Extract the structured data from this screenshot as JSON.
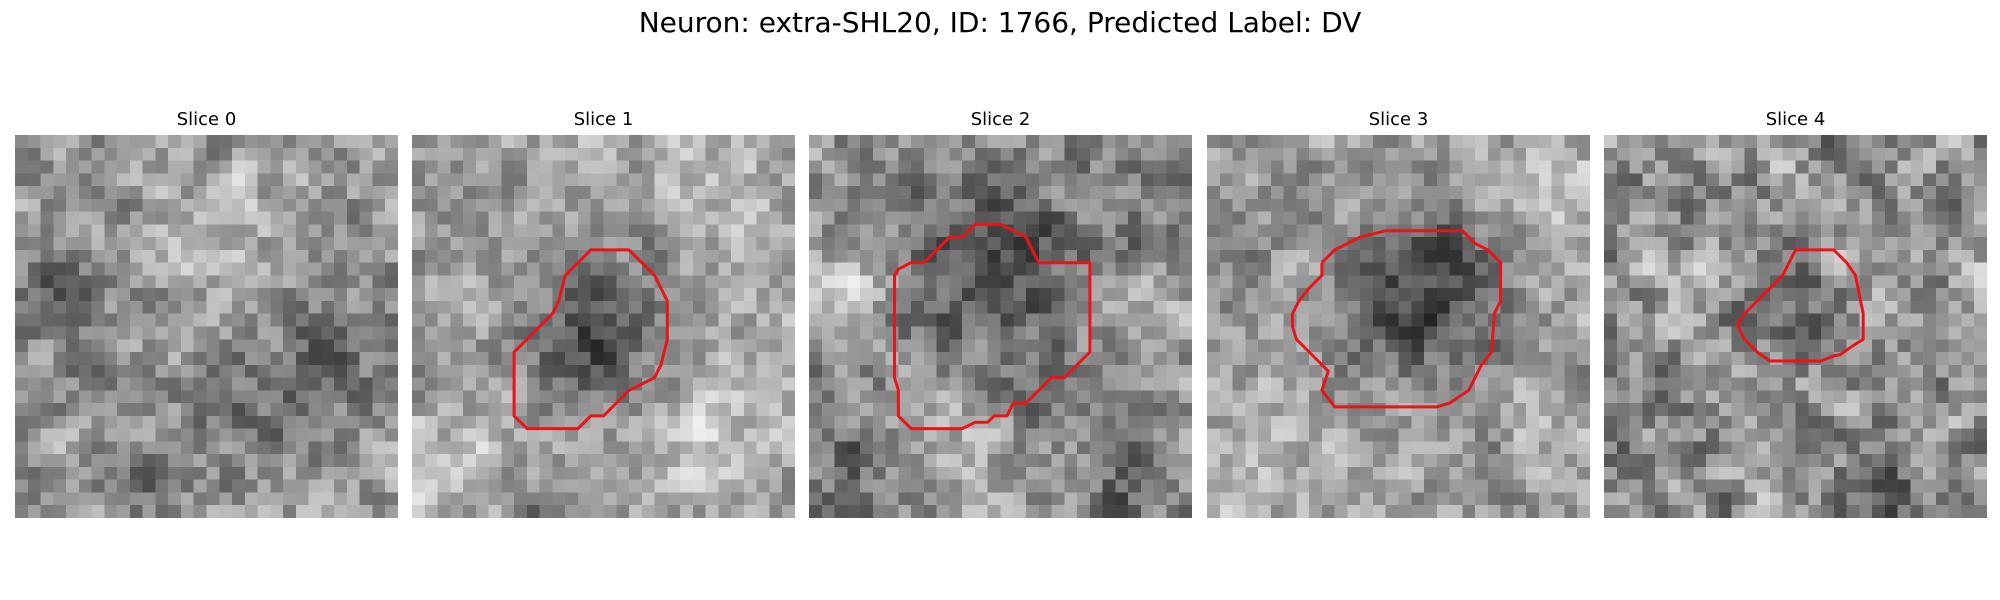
{
  "figure": {
    "title": "Neuron: extra-SHL20, ID: 1766, Predicted Label: DV"
  },
  "slices": [
    {
      "title": "Slice 0"
    },
    {
      "title": "Slice 1"
    },
    {
      "title": "Slice 2"
    },
    {
      "title": "Slice 3"
    },
    {
      "title": "Slice 4"
    }
  ],
  "colors": {
    "contour": "#e8141b",
    "background": "#ffffff",
    "colormap": "grayscale"
  }
}
